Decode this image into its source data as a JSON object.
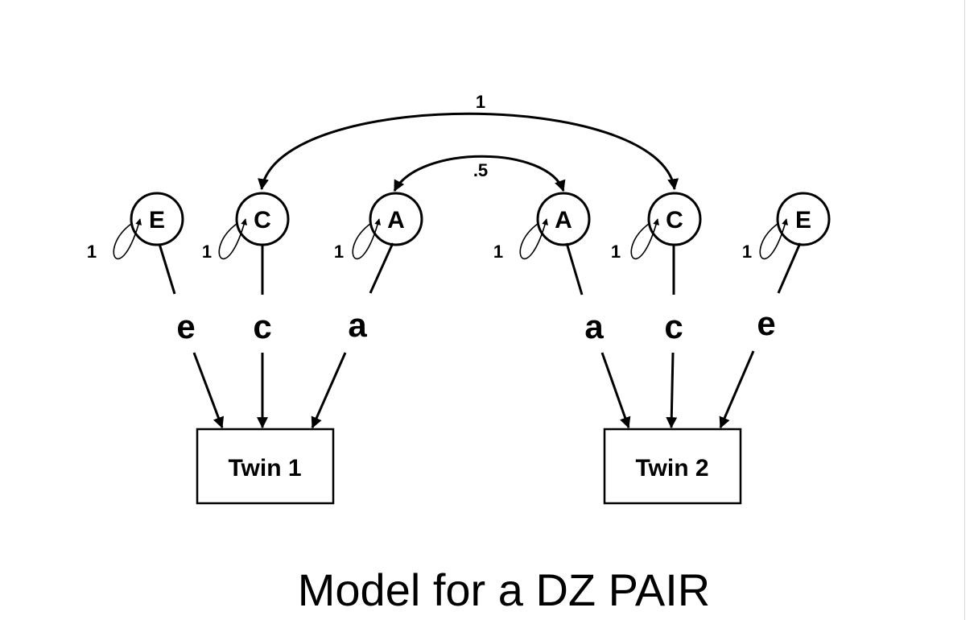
{
  "title": "Model for a DZ PAIR",
  "twins": [
    {
      "label": "Twin 1"
    },
    {
      "label": "Twin 2"
    }
  ],
  "latents": [
    {
      "id": "E1",
      "letter": "E",
      "variance": "1"
    },
    {
      "id": "C1",
      "letter": "C",
      "variance": "1"
    },
    {
      "id": "A1",
      "letter": "A",
      "variance": "1"
    },
    {
      "id": "A2",
      "letter": "A",
      "variance": "1"
    },
    {
      "id": "C2",
      "letter": "C",
      "variance": "1"
    },
    {
      "id": "E2",
      "letter": "E",
      "variance": "1"
    }
  ],
  "paths": [
    {
      "from": "E1",
      "to": "Twin 1",
      "label": "e"
    },
    {
      "from": "C1",
      "to": "Twin 1",
      "label": "c"
    },
    {
      "from": "A1",
      "to": "Twin 1",
      "label": "a"
    },
    {
      "from": "A2",
      "to": "Twin 2",
      "label": "a"
    },
    {
      "from": "C2",
      "to": "Twin 2",
      "label": "c"
    },
    {
      "from": "E2",
      "to": "Twin 2",
      "label": "e"
    }
  ],
  "correlations": [
    {
      "between": [
        "C1",
        "C2"
      ],
      "label": "1"
    },
    {
      "between": [
        "A1",
        "A2"
      ],
      "label": ".5"
    }
  ]
}
